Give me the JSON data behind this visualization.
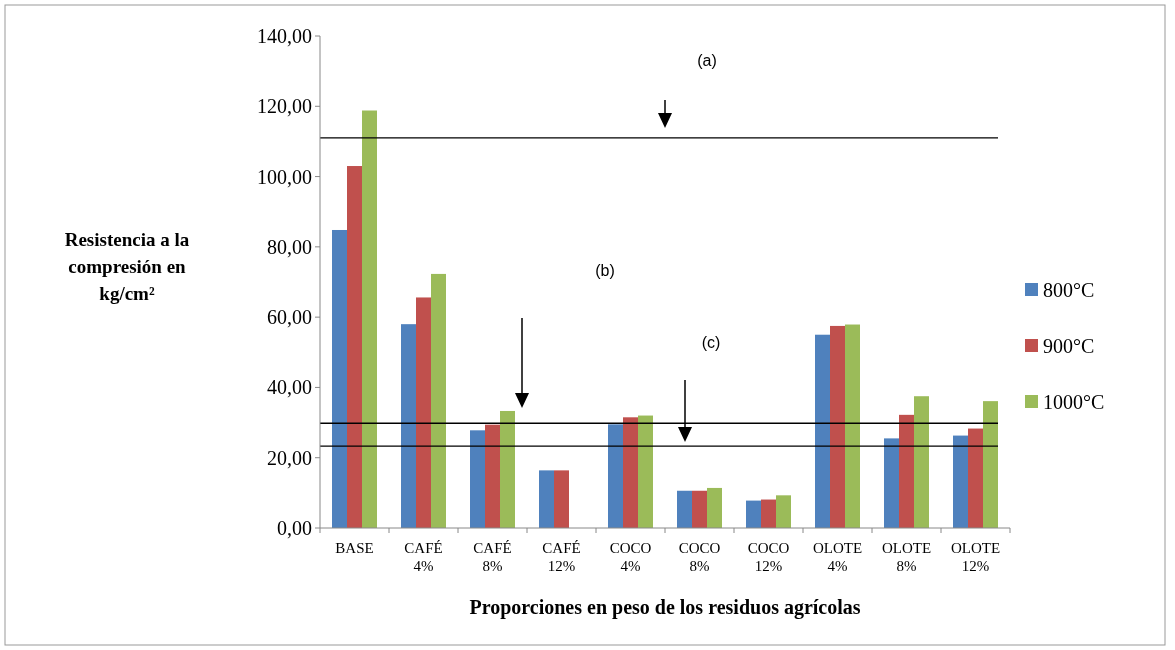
{
  "chart_data": {
    "type": "bar",
    "categories": [
      "BASE",
      "CAFÉ\n4%",
      "CAFÉ\n8%",
      "CAFÉ\n12%",
      "COCO\n4%",
      "COCO\n8%",
      "COCO\n12%",
      "OLOTE\n4%",
      "OLOTE\n8%",
      "OLOTE\n12%"
    ],
    "series": [
      {
        "name": "800°C",
        "color": "#4f81bd",
        "values": [
          84.8,
          58.0,
          27.8,
          16.4,
          29.5,
          10.6,
          7.8,
          55.0,
          25.5,
          26.3
        ]
      },
      {
        "name": "900°C",
        "color": "#c0504d",
        "values": [
          103.0,
          65.6,
          29.4,
          16.4,
          31.5,
          10.6,
          8.1,
          57.5,
          32.2,
          28.3
        ]
      },
      {
        "name": "1000°C",
        "color": "#9bbb59",
        "values": [
          118.8,
          72.3,
          33.3,
          null,
          32.0,
          11.4,
          9.3,
          57.9,
          37.5,
          36.1
        ]
      }
    ],
    "ylim": [
      0,
      140
    ],
    "yticks": [
      {
        "value": 0,
        "label": "0,00"
      },
      {
        "value": 20,
        "label": "20,00"
      },
      {
        "value": 40,
        "label": "40,00"
      },
      {
        "value": 60,
        "label": "60,00"
      },
      {
        "value": 80,
        "label": "80,00"
      },
      {
        "value": 100,
        "label": "100,00"
      },
      {
        "value": 120,
        "label": "120,00"
      },
      {
        "value": 140,
        "label": "140,00"
      }
    ],
    "ylabel": "Resistencia a la\ncompresión en\nkg/cm²",
    "xlabel": "Proporciones en peso de los residuos agrícolas",
    "ref_lines": [
      {
        "axis": "y",
        "value": 111,
        "color": "#000000"
      },
      {
        "axis": "y",
        "value": 29.8,
        "color": "#000000"
      },
      {
        "axis": "y",
        "value": 23.3,
        "color": "#000000"
      }
    ],
    "annotations": [
      "(a)",
      "(b)",
      "(c)"
    ],
    "legend": "right",
    "grid": false
  }
}
